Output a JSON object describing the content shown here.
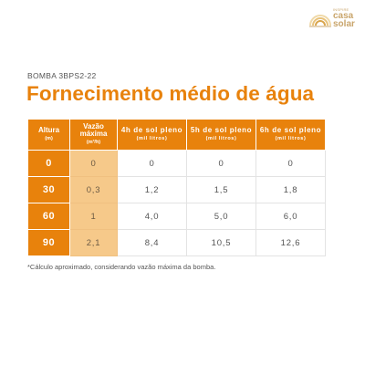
{
  "brand": {
    "small": "INSPIRE",
    "line1": "casa",
    "line2": "solar",
    "color": "#c9a56b",
    "icon": "sun-rays-icon"
  },
  "product_code": "BOMBA 3BPS2-22",
  "title": "Fornecimento médio de água",
  "accent_color": "#e8820c",
  "highlight_color": "#f6c98a",
  "table": {
    "headers": [
      {
        "label": "Altura",
        "sub": "(m)"
      },
      {
        "label": "Vazão máxima",
        "sub": "(m³/h)"
      },
      {
        "label": "4h de sol pleno",
        "sub": "(mil litros)"
      },
      {
        "label": "5h de sol pleno",
        "sub": "(mil litros)"
      },
      {
        "label": "6h de sol pleno",
        "sub": "(mil litros)"
      }
    ],
    "rows": [
      [
        "0",
        "0",
        "0",
        "0",
        "0"
      ],
      [
        "30",
        "0,3",
        "1,2",
        "1,5",
        "1,8"
      ],
      [
        "60",
        "1",
        "4,0",
        "5,0",
        "6,0"
      ],
      [
        "90",
        "2,1",
        "8,4",
        "10,5",
        "12,6"
      ]
    ]
  },
  "footnote": "*Cálculo aproximado, considerando vazão máxima da bomba."
}
